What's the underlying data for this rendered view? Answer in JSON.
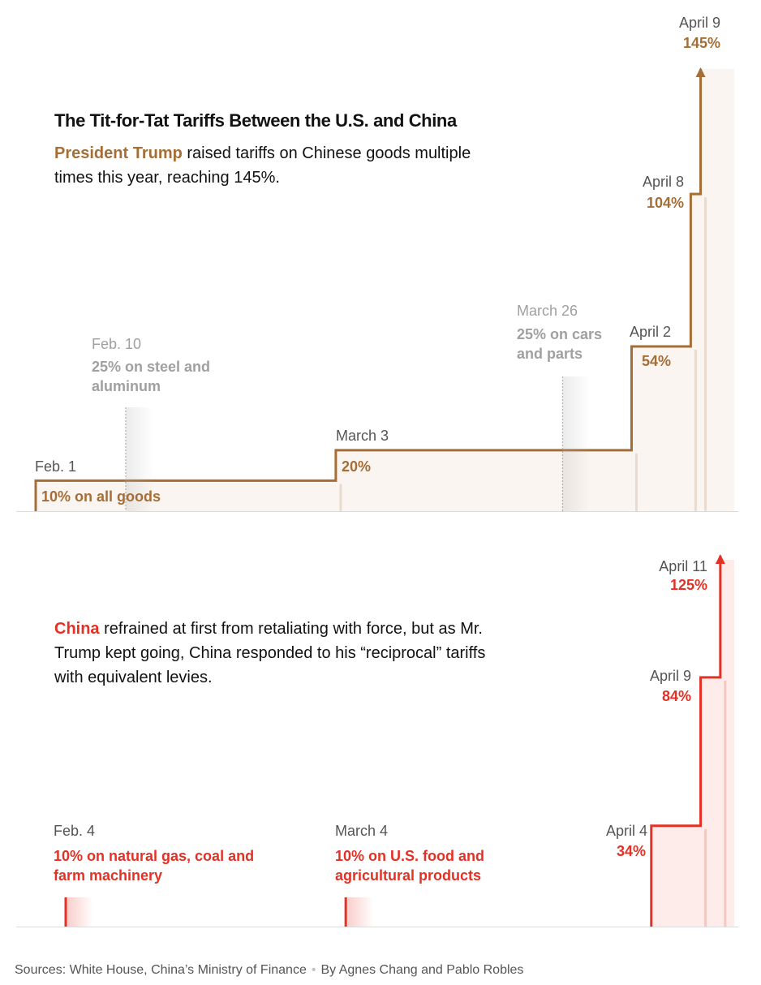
{
  "colors": {
    "us": "#a56e37",
    "china": "#e33125",
    "other_event": "#a0a0a0",
    "us_fill": "#faf5f1",
    "china_fill": "#fdecea"
  },
  "header": {
    "title": "The Tit-for-Tat Tariffs Between the U.S. and China",
    "us_lead": "President Trump",
    "us_text": " raised tariffs on Chinese goods multiple times this year, reaching 145%.",
    "china_lead": "China",
    "china_text": " refrained at first from retaliating with force, but as Mr. Trump kept going, China responded to his “reciprocal” tariffs with equivalent levies."
  },
  "footer": {
    "sources": "Sources: White House, China’s Ministry of Finance",
    "separator": "•",
    "byline": "By Agnes Chang and Pablo Robles"
  },
  "chart_data": [
    {
      "type": "line",
      "subject": "U.S. tariffs on Chinese goods",
      "x_range": [
        "2025-01-26",
        "2025-04-12"
      ],
      "y_range": [
        0,
        145
      ],
      "steps": [
        {
          "date": "2025-02-01",
          "value": 10,
          "date_label": "Feb. 1",
          "value_label": "10% on all goods"
        },
        {
          "date": "2025-03-03",
          "value": 20,
          "date_label": "March 3",
          "value_label": "20%"
        },
        {
          "date": "2025-04-02",
          "value": 54,
          "date_label": "April 2",
          "value_label": "54%"
        },
        {
          "date": "2025-04-08",
          "value": 104,
          "date_label": "April 8",
          "value_label": "104%"
        },
        {
          "date": "2025-04-09",
          "value": 145,
          "date_label": "April 9",
          "value_label": "145%"
        }
      ],
      "other_events": [
        {
          "date": "2025-02-10",
          "date_label": "Feb. 10",
          "label": "25% on steel and aluminum"
        },
        {
          "date": "2025-03-26",
          "date_label": "March 26",
          "label": "25% on cars and parts"
        }
      ]
    },
    {
      "type": "line",
      "subject": "China tariffs on U.S. goods",
      "x_range": [
        "2025-01-26",
        "2025-04-12"
      ],
      "y_range": [
        0,
        125
      ],
      "steps": [
        {
          "date": "2025-04-04",
          "value": 34,
          "date_label": "April 4",
          "value_label": "34%"
        },
        {
          "date": "2025-04-09",
          "value": 84,
          "date_label": "April 9",
          "value_label": "84%"
        },
        {
          "date": "2025-04-11",
          "value": 125,
          "date_label": "April 11",
          "value_label": "125%"
        }
      ],
      "targeted_events": [
        {
          "date": "2025-02-04",
          "date_label": "Feb. 4",
          "label": "10% on natural gas, coal and farm machinery"
        },
        {
          "date": "2025-03-04",
          "date_label": "March 4",
          "label": "10% on U.S. food and agricultural products"
        }
      ]
    }
  ]
}
